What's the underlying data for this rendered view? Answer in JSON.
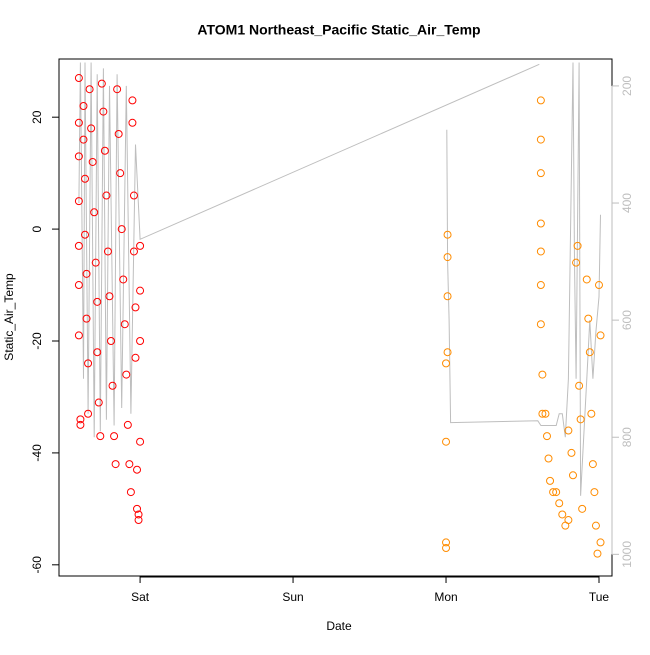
{
  "chart_data": {
    "type": "scatter",
    "title": "ATOM1 Northeast_Pacific Static_Air_Temp",
    "x_label": "Date",
    "y_label": "Static_Air_Temp",
    "xlim": [
      -0.53,
      3.085
    ],
    "xticks": [
      {
        "value": 0,
        "label": "Sat"
      },
      {
        "value": 1,
        "label": "Sun"
      },
      {
        "value": 2,
        "label": "Mon"
      },
      {
        "value": 3,
        "label": "Tue"
      }
    ],
    "ylim": [
      -62,
      30.4
    ],
    "yticks": [
      -60,
      -40,
      -20,
      0,
      20
    ],
    "y2lim": [
      1037,
      154
    ],
    "y2ticks": [
      200,
      400,
      600,
      800,
      1000
    ],
    "series": [
      {
        "color": "#ff0000",
        "x": [
          -0.4,
          -0.4,
          -0.4,
          -0.4,
          -0.4,
          -0.4,
          -0.4,
          -0.39,
          -0.39,
          -0.37,
          -0.37,
          -0.36,
          -0.36,
          -0.35,
          -0.35,
          -0.34,
          -0.34,
          -0.33,
          -0.32,
          -0.31,
          -0.3,
          -0.29,
          -0.28,
          -0.28,
          -0.27,
          -0.26,
          -0.25,
          -0.24,
          -0.23,
          -0.22,
          -0.21,
          -0.2,
          -0.19,
          -0.18,
          -0.17,
          -0.16,
          -0.15,
          -0.14,
          -0.13,
          -0.12,
          -0.11,
          -0.1,
          -0.09,
          -0.08,
          -0.07,
          -0.06,
          -0.05,
          -0.05,
          -0.04,
          -0.04,
          -0.03,
          -0.03,
          -0.02,
          -0.02,
          -0.01,
          -0.01,
          0.0,
          0.0,
          0.0,
          0.0
        ],
        "values": [
          27,
          19,
          13,
          5,
          -3,
          -10,
          -19,
          -34,
          -35,
          22,
          16,
          9,
          -1,
          -8,
          -16,
          -24,
          -33,
          25,
          18,
          12,
          3,
          -6,
          -13,
          -22,
          -31,
          -37,
          26,
          21,
          14,
          6,
          -4,
          -12,
          -20,
          -28,
          -37,
          -42,
          25,
          17,
          10,
          0,
          -9,
          -17,
          -26,
          -35,
          -42,
          -47,
          23,
          19,
          6,
          -4,
          -14,
          -23,
          -43,
          -50,
          -51,
          -52,
          -11,
          -20,
          -38,
          -3
        ]
      },
      {
        "color": "#ff8c00",
        "x": [
          2.0,
          2.0,
          2.0,
          2.0,
          2.01,
          2.01,
          2.01,
          2.01,
          2.62,
          2.62,
          2.62,
          2.62,
          2.62,
          2.62,
          2.62,
          2.63,
          2.63,
          2.65,
          2.66,
          2.67,
          2.68,
          2.7,
          2.72,
          2.74,
          2.76,
          2.78,
          2.8,
          2.8,
          2.82,
          2.83,
          2.85,
          2.86,
          2.87,
          2.88,
          2.89,
          2.92,
          2.93,
          2.94,
          2.95,
          2.96,
          2.97,
          2.98,
          2.99,
          3.0,
          3.01,
          3.01
        ],
        "values": [
          -24,
          -38,
          -56,
          -57,
          -1,
          -5,
          -12,
          -22,
          23,
          16,
          10,
          1,
          -4,
          -10,
          -17,
          -26,
          -33,
          -33,
          -37,
          -41,
          -45,
          -47,
          -47,
          -49,
          -51,
          -53,
          -52,
          -36,
          -40,
          -44,
          -6,
          -3,
          -28,
          -34,
          -50,
          -9,
          -16,
          -22,
          -33,
          -42,
          -47,
          -53,
          -58,
          -10,
          -19,
          -56
        ]
      },
      {
        "color": "#bebebe",
        "type": "line",
        "axis": "y2",
        "x": [
          -0.4,
          -0.39,
          -0.37,
          -0.36,
          -0.34,
          -0.32,
          -0.3,
          -0.28,
          -0.26,
          -0.24,
          -0.22,
          -0.2,
          -0.17,
          -0.15,
          -0.12,
          -0.09,
          -0.06,
          -0.03,
          0.0,
          2.61,
          null,
          2.005,
          2.01,
          2.02,
          2.03,
          2.6,
          2.62,
          2.72,
          2.74,
          2.76,
          2.78,
          2.8,
          2.83,
          2.84,
          2.85,
          2.87,
          2.88,
          2.9,
          2.92,
          2.94,
          2.96,
          2.98,
          3.0,
          3.01
        ],
        "values": [
          400,
          160,
          700,
          160,
          760,
          160,
          800,
          180,
          790,
          170,
          770,
          200,
          780,
          180,
          750,
          200,
          760,
          300,
          462,
          163,
          null,
          275,
          500,
          600,
          775,
          772,
          780,
          780,
          760,
          760,
          800,
          700,
          160,
          500,
          700,
          160,
          900,
          800,
          700,
          600,
          700,
          620,
          560,
          420
        ]
      }
    ]
  }
}
